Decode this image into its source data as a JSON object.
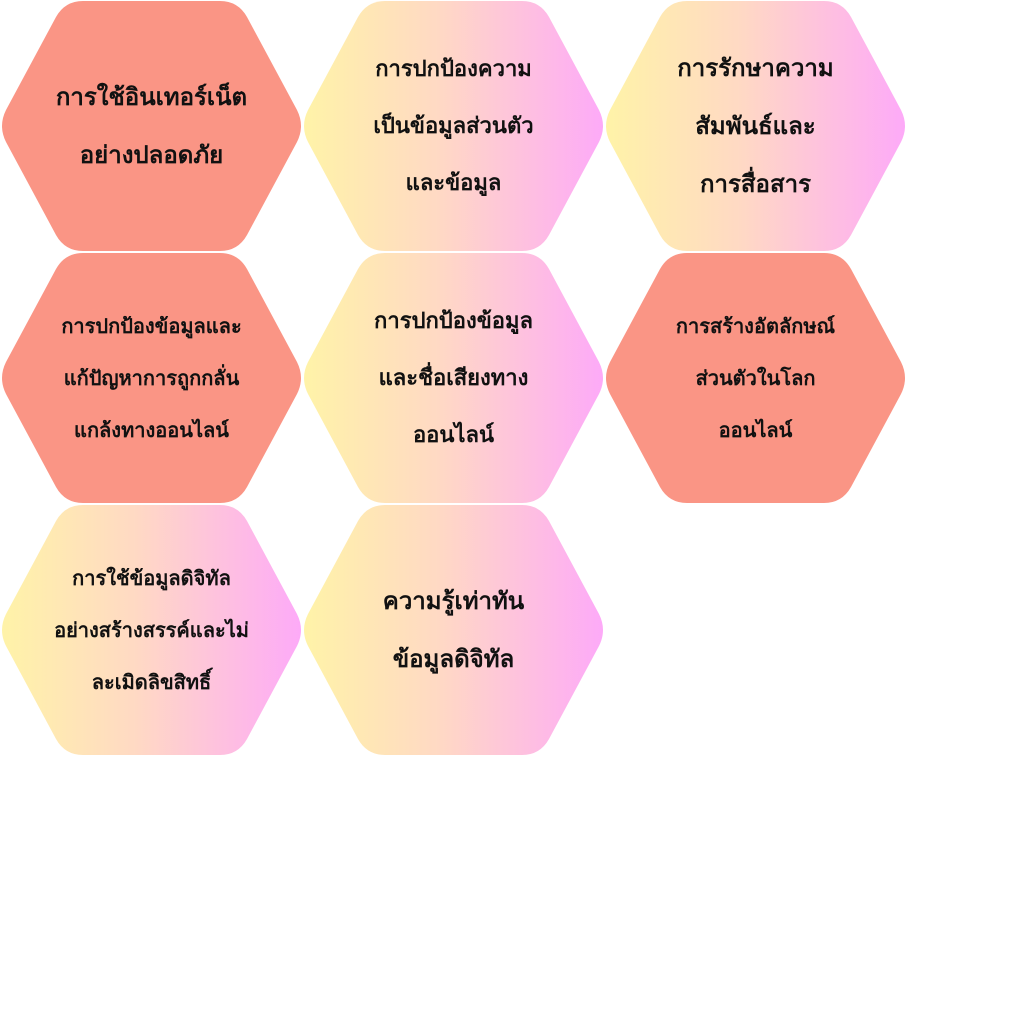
{
  "palette": {
    "coral": "#FA9585",
    "gradient_start": "#FFF3A8",
    "gradient_mid": "#FFD9C4",
    "gradient_end": "#FDAAF8"
  },
  "tiles": [
    {
      "label": "การใช้อินเทอร์เน็ต\nอย่างปลอดภัย",
      "fill": "coral"
    },
    {
      "label": "การปกป้องความ\nเป็นข้อมูลส่วนตัว\nและข้อมูล",
      "fill": "gradient"
    },
    {
      "label": "การรักษาความ\nสัมพันธ์และ\nการสื่อสาร",
      "fill": "gradient"
    },
    {
      "label": "การปกป้องข้อมูลและ\nแก้ปัญหาการถูกกลั่น\nแกล้งทางออนไลน์",
      "fill": "coral"
    },
    {
      "label": "การปกป้องข้อมูล\nและชื่อเสียงทาง\nออนไลน์",
      "fill": "gradient"
    },
    {
      "label": "การสร้างอัตลักษณ์\nส่วนตัวในโลก\nออนไลน์",
      "fill": "coral"
    },
    {
      "label": "การใช้ข้อมูลดิจิทัล\nอย่างสร้างสรรค์และไม่\nละเมิดลิขสิทธิ์",
      "fill": "gradient"
    },
    {
      "label": "ความรู้เท่าทัน\nข้อมูลดิจิทัล",
      "fill": "gradient"
    }
  ]
}
